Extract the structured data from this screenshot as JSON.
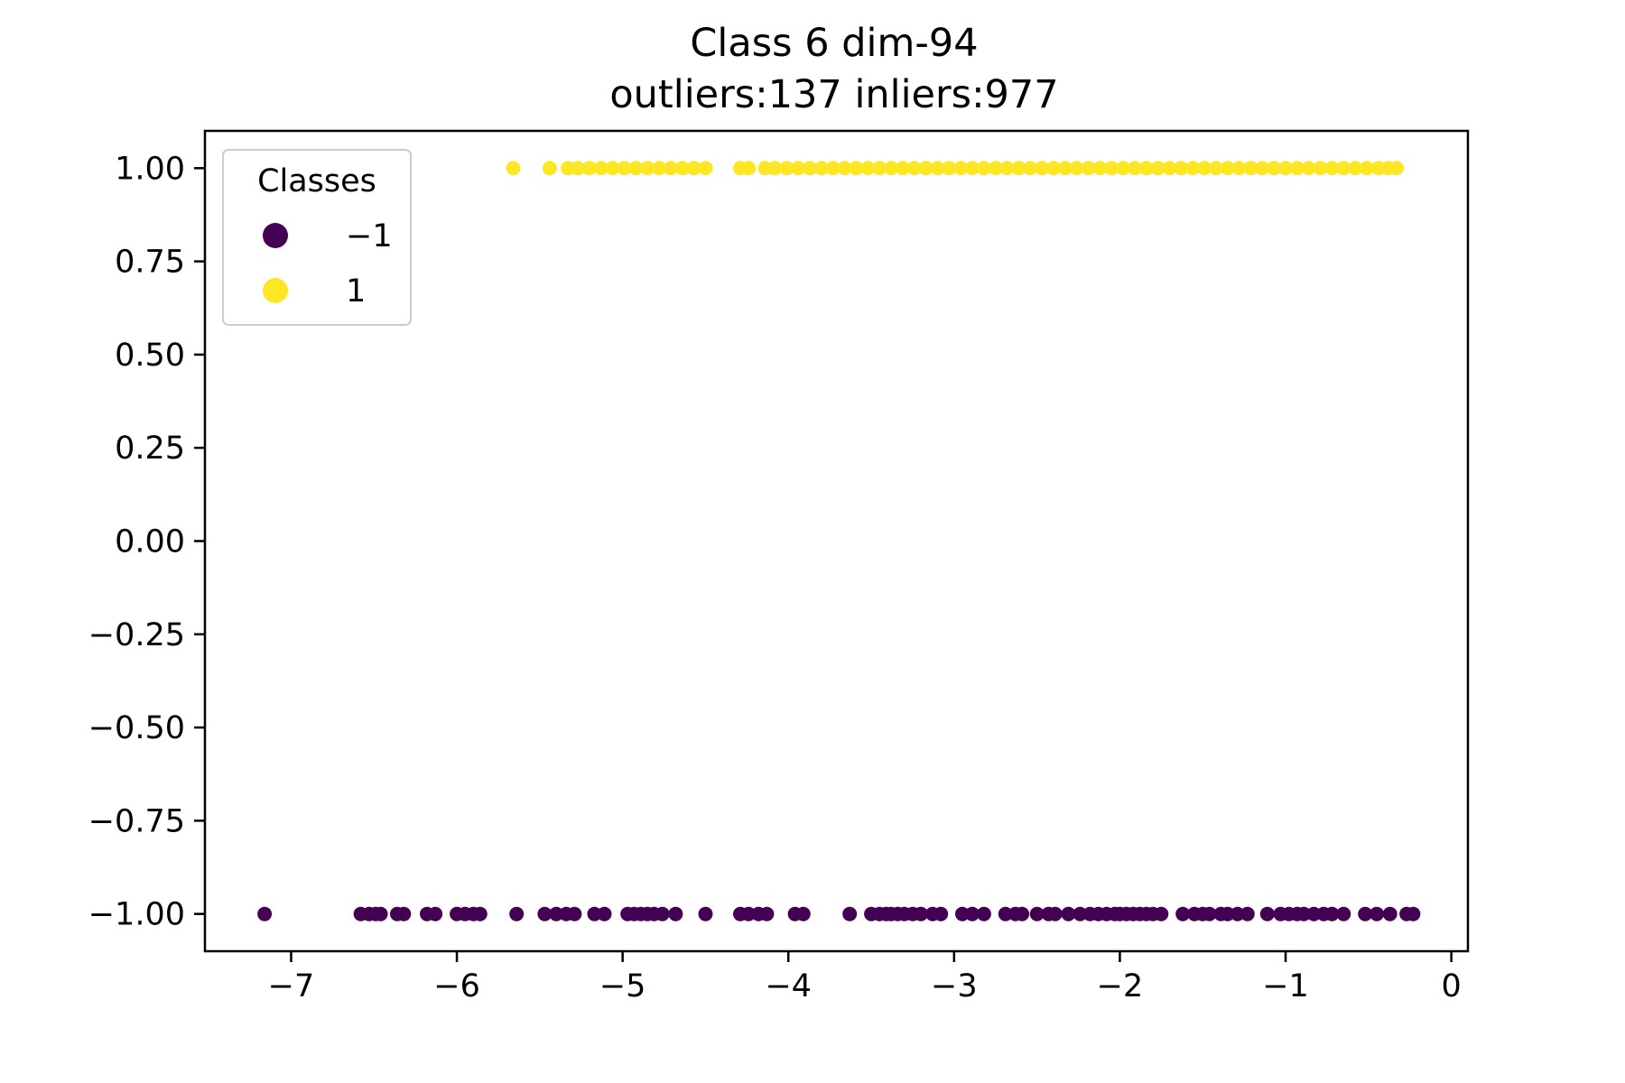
{
  "chart_data": {
    "type": "scatter",
    "title": "Class 6 dim-94",
    "subtitle": "outliers:137  inliers:977",
    "xlabel": "",
    "ylabel": "",
    "xlim": [
      -7.52,
      0.1
    ],
    "ylim": [
      -1.1,
      1.1
    ],
    "x_ticks": [
      -7,
      -6,
      -5,
      -4,
      -3,
      -2,
      -1,
      0
    ],
    "x_tick_labels": [
      "−7",
      "−6",
      "−5",
      "−4",
      "−3",
      "−2",
      "−1",
      "0"
    ],
    "y_ticks": [
      1.0,
      0.75,
      0.5,
      0.25,
      0.0,
      -0.25,
      -0.5,
      -0.75,
      -1.0
    ],
    "y_tick_labels": [
      "1.00",
      "0.75",
      "0.50",
      "0.25",
      "0.00",
      "−0.25",
      "−0.50",
      "−0.75",
      "−1.00"
    ],
    "grid": false,
    "legend": {
      "title": "Classes",
      "placement": "top-left",
      "entries": [
        {
          "label": "−1",
          "color": "#440154"
        },
        {
          "label": "1",
          "color": "#fde725"
        }
      ]
    },
    "series": [
      {
        "name": "−1",
        "color": "#440154",
        "y": -1.0,
        "x": [
          -7.16,
          -6.58,
          -6.53,
          -6.49,
          -6.46,
          -6.36,
          -6.32,
          -6.18,
          -6.13,
          -6.0,
          -5.95,
          -5.9,
          -5.86,
          -5.64,
          -5.47,
          -5.4,
          -5.34,
          -5.29,
          -5.17,
          -5.11,
          -4.97,
          -4.93,
          -4.89,
          -4.85,
          -4.81,
          -4.76,
          -4.68,
          -4.5,
          -4.29,
          -4.24,
          -4.18,
          -4.13,
          -3.96,
          -3.91,
          -3.63,
          -3.5,
          -3.45,
          -3.41,
          -3.38,
          -3.34,
          -3.3,
          -3.25,
          -3.2,
          -3.13,
          -3.08,
          -2.95,
          -2.89,
          -2.82,
          -2.69,
          -2.63,
          -2.59,
          -2.5,
          -2.43,
          -2.39,
          -2.31,
          -2.24,
          -2.18,
          -2.13,
          -2.08,
          -2.03,
          -2.0,
          -1.96,
          -1.92,
          -1.88,
          -1.84,
          -1.8,
          -1.75,
          -1.62,
          -1.55,
          -1.5,
          -1.46,
          -1.39,
          -1.35,
          -1.29,
          -1.23,
          -1.11,
          -1.03,
          -0.98,
          -0.93,
          -0.89,
          -0.83,
          -0.77,
          -0.72,
          -0.65,
          -0.52,
          -0.45,
          -0.37,
          -0.27,
          -0.23
        ]
      },
      {
        "name": "1",
        "color": "#fde725",
        "y": 1.0,
        "x": [
          -5.66,
          -5.44,
          -5.33,
          -5.27,
          -5.2,
          -5.13,
          -5.06,
          -4.99,
          -4.92,
          -4.85,
          -4.78,
          -4.71,
          -4.64,
          -4.57,
          -4.5,
          -4.29,
          -4.24,
          -4.14,
          -4.08,
          -4.01,
          -3.94,
          -3.87,
          -3.8,
          -3.73,
          -3.66,
          -3.59,
          -3.52,
          -3.45,
          -3.38,
          -3.31,
          -3.24,
          -3.17,
          -3.1,
          -3.03,
          -2.96,
          -2.89,
          -2.82,
          -2.75,
          -2.68,
          -2.61,
          -2.54,
          -2.47,
          -2.4,
          -2.33,
          -2.26,
          -2.19,
          -2.12,
          -2.05,
          -1.98,
          -1.91,
          -1.84,
          -1.77,
          -1.7,
          -1.63,
          -1.56,
          -1.49,
          -1.42,
          -1.35,
          -1.28,
          -1.21,
          -1.14,
          -1.07,
          -1.0,
          -0.93,
          -0.86,
          -0.79,
          -0.72,
          -0.65,
          -0.58,
          -0.51,
          -0.44,
          -0.38,
          -0.33
        ]
      }
    ]
  }
}
